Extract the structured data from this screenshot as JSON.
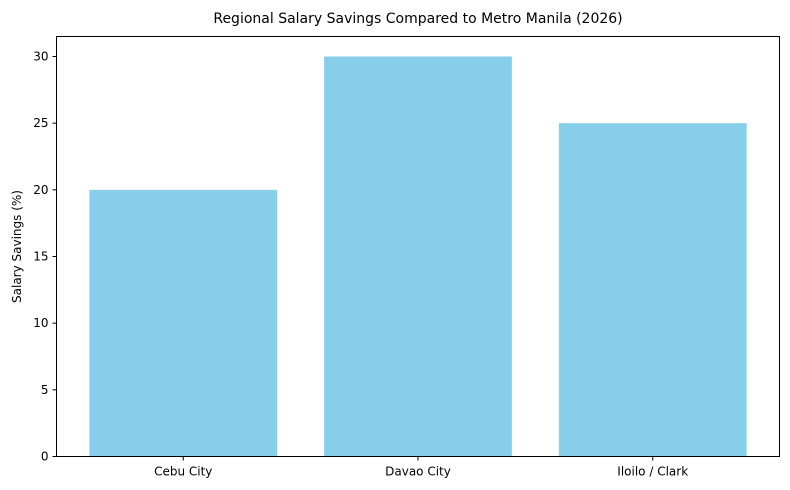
{
  "chart_data": {
    "type": "bar",
    "title": "Regional Salary Savings Compared to Metro Manila (2026)",
    "xlabel": "",
    "ylabel": "Salary Savings (%)",
    "categories": [
      "Cebu City",
      "Davao City",
      "Iloilo / Clark"
    ],
    "values": [
      20,
      30,
      25
    ],
    "ylim": [
      0,
      31.5
    ],
    "yticks": [
      0,
      5,
      10,
      15,
      20,
      25,
      30
    ],
    "bar_color": "#87CEEB",
    "grid": false,
    "legend": "none"
  }
}
